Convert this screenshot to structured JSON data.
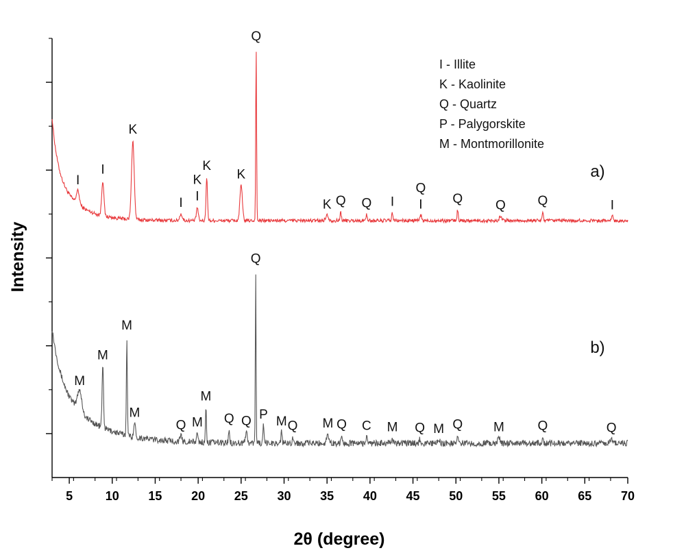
{
  "chart_data": {
    "type": "line",
    "title": "",
    "xlabel": "2θ (degree)",
    "ylabel": "Intensity",
    "xlim": [
      3,
      70
    ],
    "xticks": [
      5,
      10,
      15,
      20,
      25,
      30,
      35,
      40,
      45,
      50,
      55,
      60,
      65,
      70
    ],
    "ytick_count": 5,
    "legend": {
      "placement": "top-right",
      "entries": [
        "I - Illite",
        "K - Kaolinite",
        "Q - Quartz",
        "P - Palygorskite",
        "M - Montmorillonite"
      ]
    },
    "series": [
      {
        "name": "a)",
        "color": "#e8393c",
        "baseline_level": 0.585,
        "low_angle_start": 0.82,
        "low_angle_decay": 2.4,
        "noise": 0.004,
        "peaks": [
          {
            "x": 6.0,
            "h": 0.03,
            "w": 0.25,
            "label": "I"
          },
          {
            "x": 8.9,
            "h": 0.08,
            "w": 0.18,
            "label": "I"
          },
          {
            "x": 12.4,
            "h": 0.18,
            "w": 0.22,
            "label": "K"
          },
          {
            "x": 18.0,
            "h": 0.015,
            "w": 0.2,
            "label": "I"
          },
          {
            "x": 19.9,
            "h": 0.03,
            "w": 0.15,
            "label": "K I"
          },
          {
            "x": 21.0,
            "h": 0.1,
            "w": 0.12,
            "label": "K"
          },
          {
            "x": 25.0,
            "h": 0.08,
            "w": 0.2,
            "label": "K"
          },
          {
            "x": 26.75,
            "h": 0.395,
            "w": 0.07,
            "label": "Q"
          },
          {
            "x": 35.0,
            "h": 0.012,
            "w": 0.25,
            "label": "K"
          },
          {
            "x": 36.6,
            "h": 0.02,
            "w": 0.1,
            "label": "Q"
          },
          {
            "x": 39.6,
            "h": 0.015,
            "w": 0.1,
            "label": "Q"
          },
          {
            "x": 42.6,
            "h": 0.018,
            "w": 0.1,
            "label": "I"
          },
          {
            "x": 45.9,
            "h": 0.012,
            "w": 0.15,
            "label": "Q I"
          },
          {
            "x": 50.2,
            "h": 0.025,
            "w": 0.1,
            "label": "Q"
          },
          {
            "x": 55.2,
            "h": 0.01,
            "w": 0.2,
            "label": "Q"
          },
          {
            "x": 60.1,
            "h": 0.02,
            "w": 0.1,
            "label": "Q"
          },
          {
            "x": 68.2,
            "h": 0.01,
            "w": 0.15,
            "label": "I"
          }
        ]
      },
      {
        "name": "b)",
        "color": "#555555",
        "baseline_level": 0.078,
        "low_angle_start": 0.34,
        "low_angle_decay": 4.2,
        "noise": 0.007,
        "peaks": [
          {
            "x": 6.2,
            "h": 0.05,
            "w": 0.35,
            "label": "M"
          },
          {
            "x": 8.9,
            "h": 0.14,
            "w": 0.12,
            "label": "M"
          },
          {
            "x": 11.7,
            "h": 0.225,
            "w": 0.08,
            "label": "M"
          },
          {
            "x": 12.6,
            "h": 0.03,
            "w": 0.15,
            "label": "M"
          },
          {
            "x": 18.0,
            "h": 0.012,
            "w": 0.15,
            "label": "Q"
          },
          {
            "x": 19.9,
            "h": 0.02,
            "w": 0.12,
            "label": "M"
          },
          {
            "x": 20.9,
            "h": 0.08,
            "w": 0.08,
            "label": "M"
          },
          {
            "x": 23.6,
            "h": 0.03,
            "w": 0.1,
            "label": "Q"
          },
          {
            "x": 25.6,
            "h": 0.025,
            "w": 0.15,
            "label": "Q"
          },
          {
            "x": 26.7,
            "h": 0.395,
            "w": 0.06,
            "label": "Q"
          },
          {
            "x": 27.6,
            "h": 0.04,
            "w": 0.08,
            "label": "P"
          },
          {
            "x": 29.7,
            "h": 0.025,
            "w": 0.1,
            "label": "M"
          },
          {
            "x": 31.0,
            "h": 0.015,
            "w": 0.1,
            "label": "Q"
          },
          {
            "x": 35.1,
            "h": 0.02,
            "w": 0.2,
            "label": "M"
          },
          {
            "x": 36.7,
            "h": 0.018,
            "w": 0.1,
            "label": "Q"
          },
          {
            "x": 39.6,
            "h": 0.015,
            "w": 0.1,
            "label": "C"
          },
          {
            "x": 42.6,
            "h": 0.012,
            "w": 0.1,
            "label": "M"
          },
          {
            "x": 45.8,
            "h": 0.01,
            "w": 0.12,
            "label": "Q"
          },
          {
            "x": 48.0,
            "h": 0.008,
            "w": 0.15,
            "label": "M"
          },
          {
            "x": 50.2,
            "h": 0.018,
            "w": 0.1,
            "label": "Q"
          },
          {
            "x": 55.0,
            "h": 0.012,
            "w": 0.2,
            "label": "M"
          },
          {
            "x": 60.1,
            "h": 0.015,
            "w": 0.1,
            "label": "Q"
          },
          {
            "x": 68.1,
            "h": 0.01,
            "w": 0.15,
            "label": "Q"
          }
        ]
      }
    ]
  }
}
